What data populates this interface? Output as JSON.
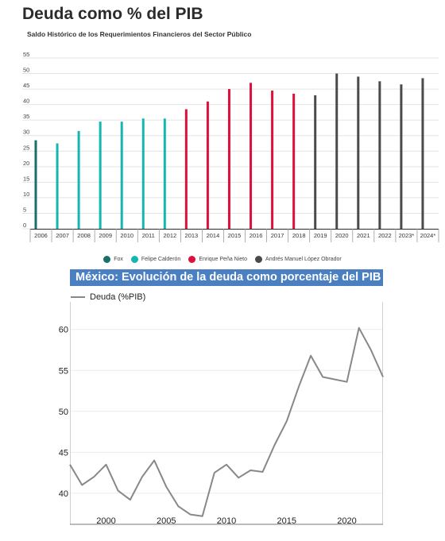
{
  "title": "Deuda como % del PIB",
  "subtitle": "Saldo Histórico de los Requerimientos Financieros del Sector Público",
  "colors": {
    "fox": "#1b6f6a",
    "calderon": "#13b7b0",
    "pena_nieto": "#e0103c",
    "amlo": "#4a4a4a",
    "panel_header": "#4a7fc1",
    "line": "#888888"
  },
  "legend": [
    {
      "label": "Fox",
      "color": "#1b6f6a"
    },
    {
      "label": "Felipe Calderón",
      "color": "#13b7b0"
    },
    {
      "label": "Enrique Peña Nieto",
      "color": "#e0103c"
    },
    {
      "label": "Andrés Manuel López Obrador",
      "color": "#4a4a4a"
    }
  ],
  "line_chart": {
    "header": "México: Evolución de la deuda como porcentaje del PIB",
    "legend_label": "Deuda (%PIB)"
  },
  "chart_data": [
    {
      "type": "bar",
      "title": "Deuda como % del PIB",
      "subtitle": "Saldo Histórico de los Requerimientos Financieros del Sector Público",
      "categories": [
        "2006",
        "2007",
        "2008",
        "2009",
        "2010",
        "2011",
        "2012",
        "2013",
        "2014",
        "2015",
        "2016",
        "2017",
        "2018",
        "2019",
        "2020",
        "2021",
        "2022",
        "2023*",
        "2024*"
      ],
      "values": [
        28.5,
        27.5,
        31.5,
        34.5,
        34.5,
        35.5,
        35.5,
        38.5,
        41,
        45,
        47,
        44.5,
        43.5,
        43,
        50,
        49,
        47.5,
        46.5,
        48.5
      ],
      "groups": [
        "fox",
        "calderon",
        "calderon",
        "calderon",
        "calderon",
        "calderon",
        "calderon",
        "pena_nieto",
        "pena_nieto",
        "pena_nieto",
        "pena_nieto",
        "pena_nieto",
        "pena_nieto",
        "amlo",
        "amlo",
        "amlo",
        "amlo",
        "amlo",
        "amlo"
      ],
      "yticks": [
        0,
        5,
        10,
        15,
        20,
        25,
        30,
        35,
        40,
        45,
        50,
        55
      ],
      "ylim": [
        0,
        55
      ],
      "grid": true,
      "legend_position": "bottom"
    },
    {
      "type": "line",
      "title": "México: Evolución de la deuda como porcentaje del PIB",
      "series": [
        {
          "name": "Deuda (%PIB)",
          "x": [
            1997,
            1998,
            1999,
            2000,
            2001,
            2002,
            2003,
            2004,
            2005,
            2006,
            2007,
            2008,
            2009,
            2010,
            2011,
            2012,
            2013,
            2014,
            2015,
            2016,
            2017,
            2018,
            2019,
            2020,
            2021,
            2022,
            2023
          ],
          "values": [
            43.5,
            41,
            42,
            43.5,
            40.3,
            39.2,
            42,
            44,
            40.8,
            38.4,
            37.4,
            37.2,
            42.5,
            43.5,
            41.9,
            42.8,
            42.6,
            45.9,
            48.8,
            53,
            56.8,
            54.2,
            53.9,
            53.6,
            60.2,
            57.5,
            54.2
          ]
        }
      ],
      "xticks": [
        2000,
        2005,
        2010,
        2015,
        2020
      ],
      "yticks": [
        40,
        45,
        50,
        55,
        60
      ],
      "xlim": [
        1997,
        2023
      ],
      "ylim": [
        36.2,
        62.4
      ],
      "grid": true,
      "legend_position": "top-left"
    }
  ]
}
